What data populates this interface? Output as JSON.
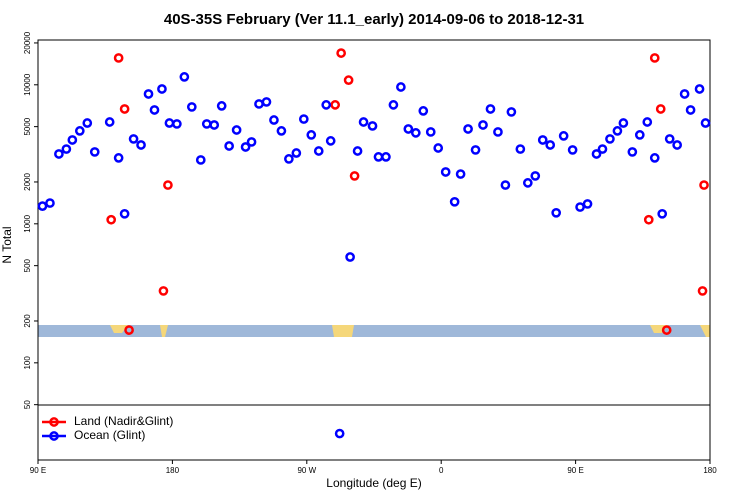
{
  "chart_data": {
    "type": "scatter",
    "title": "40S-35S February (Ver 11.1_early)   2014-09-06 to 2018-12-31",
    "x_label": "Longitude (deg E)",
    "y_label": "N Total",
    "log_y": true,
    "legend": "lower left",
    "xlim": [
      90,
      540
    ],
    "xticks": [
      {
        "value": 90,
        "label": "90 E"
      },
      180,
      {
        "value": 270,
        "label": "90 W"
      },
      {
        "value": 360,
        "label": "0"
      },
      {
        "value": 450,
        "label": "90 E"
      },
      {
        "value": 540,
        "label": "180"
      }
    ],
    "ylim": [
      20,
      21000
    ],
    "yticks": [
      50,
      100,
      200,
      500,
      1000,
      2000,
      5000,
      10000,
      20000
    ],
    "series": [
      {
        "name": "Land (Nadir&Glint)",
        "color": "#ff0000",
        "x": [
          144,
          148,
          139,
          151,
          177,
          174,
          289,
          293,
          298,
          302,
          503,
          507,
          499,
          511,
          536,
          535
        ],
        "values": [
          15600,
          6700,
          1070,
          172,
          1900,
          329,
          7170,
          16900,
          10800,
          2210,
          15600,
          6700,
          1070,
          172,
          1900,
          329
        ]
      },
      {
        "name": "Ocean (Glint)",
        "color": "#0000ff",
        "x": [
          93,
          98,
          104,
          109,
          113,
          118,
          123,
          128,
          138,
          144,
          148,
          154,
          159,
          164,
          168,
          173,
          178,
          183,
          188,
          193,
          199,
          203,
          208,
          213,
          218,
          223,
          229,
          233,
          238,
          243,
          248,
          253,
          258,
          263,
          268,
          273,
          278,
          283,
          286,
          299,
          304,
          308,
          314,
          318,
          323,
          328,
          333,
          338,
          343,
          348,
          353,
          358,
          363,
          369,
          373,
          378,
          383,
          388,
          393,
          398,
          403,
          407,
          413,
          418,
          423,
          428,
          433,
          437,
          442,
          448,
          453,
          458,
          464,
          468,
          473,
          478,
          482,
          488,
          493,
          498,
          503,
          508,
          513,
          518,
          523,
          527,
          533,
          537,
          292
        ],
        "values": [
          1340,
          1410,
          3180,
          3450,
          4010,
          4660,
          5310,
          3290,
          5400,
          2980,
          1180,
          4080,
          3690,
          8590,
          6590,
          9330,
          5310,
          5230,
          11400,
          6930,
          2880,
          5230,
          5140,
          7050,
          3630,
          4730,
          3570,
          3880,
          7280,
          7530,
          5580,
          4660,
          2930,
          3230,
          5670,
          4360,
          3340,
          7170,
          3950,
          577,
          3340,
          5400,
          5060,
          3030,
          3030,
          7170,
          9640,
          4810,
          4510,
          6490,
          4580,
          3510,
          2360,
          1440,
          2280,
          4810,
          3400,
          5140,
          6700,
          4580,
          1900,
          6380,
          3450,
          1970,
          2210,
          4010,
          3690,
          1200,
          4290,
          3400,
          1320,
          1390,
          3180,
          3450,
          4080,
          4660,
          5310,
          3290,
          4360,
          5400,
          2980,
          1180,
          4080,
          3690,
          8590,
          6590,
          9330,
          5310,
          31
        ]
      }
    ]
  }
}
